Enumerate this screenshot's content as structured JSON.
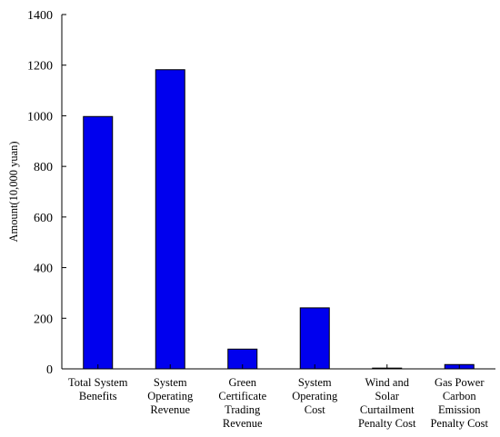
{
  "chart_data": {
    "type": "bar",
    "title": "",
    "xlabel": "",
    "ylabel": "Amount(10,000 yuan)",
    "ylim": [
      0,
      1400
    ],
    "yticks": [
      0,
      200,
      400,
      600,
      800,
      1000,
      1200,
      1400
    ],
    "grid": false,
    "categories": [
      [
        "Total System",
        "Benefits"
      ],
      [
        "System",
        "Operating",
        "Revenue"
      ],
      [
        "Green",
        "Certificate",
        "Trading",
        "Revenue"
      ],
      [
        "System",
        "Operating",
        "Cost"
      ],
      [
        "Wind and",
        "Solar",
        "Curtailment",
        "Penalty Cost"
      ],
      [
        "Gas Power",
        "Carbon",
        "Emission",
        "Penalty Cost"
      ]
    ],
    "values": [
      997,
      1182,
      78,
      241,
      3,
      17
    ],
    "bar_color": "#0000ee",
    "edge_color": "#000000"
  }
}
